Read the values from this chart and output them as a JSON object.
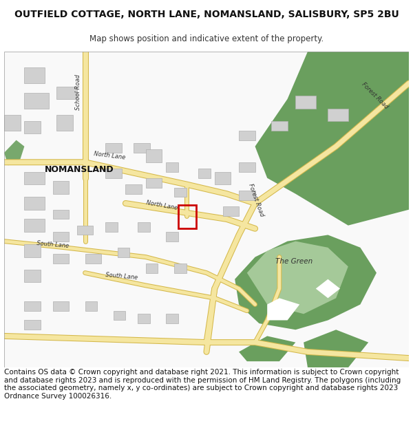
{
  "title_line1": "OUTFIELD COTTAGE, NORTH LANE, NOMANSLAND, SALISBURY, SP5 2BU",
  "title_line2": "Map shows position and indicative extent of the property.",
  "footer_text": "Contains OS data © Crown copyright and database right 2021. This information is subject to Crown copyright and database rights 2023 and is reproduced with the permission of HM Land Registry. The polygons (including the associated geometry, namely x, y co-ordinates) are subject to Crown copyright and database rights 2023 Ordnance Survey 100026316.",
  "bg_color": "#ffffff",
  "map_bg": "#f8f8f8",
  "road_color": "#f5e6a0",
  "road_border": "#d4b84a",
  "green_color": "#6a9f5e",
  "light_green": "#b5d4a8",
  "building_color": "#d0d0d0",
  "building_border": "#b0b0b0",
  "red_box_color": "#cc0000",
  "label_color": "#333333",
  "title_fontsize": 10,
  "subtitle_fontsize": 8.5,
  "footer_fontsize": 7.5
}
